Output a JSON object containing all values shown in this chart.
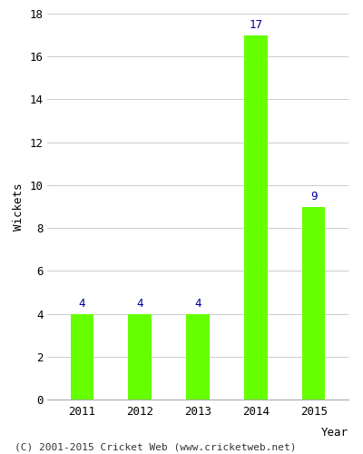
{
  "years": [
    "2011",
    "2012",
    "2013",
    "2014",
    "2015"
  ],
  "values": [
    4,
    4,
    4,
    17,
    9
  ],
  "bar_color": "#66ff00",
  "bar_edgecolor": "#66ff00",
  "label_color": "#000099",
  "xlabel": "Year",
  "ylabel": "Wickets",
  "ylim": [
    0,
    18
  ],
  "yticks": [
    0,
    2,
    4,
    6,
    8,
    10,
    12,
    14,
    16,
    18
  ],
  "grid_color": "#cccccc",
  "background_color": "#ffffff",
  "footer_text": "(C) 2001-2015 Cricket Web (www.cricketweb.net)",
  "label_fontsize": 9,
  "axis_label_fontsize": 9,
  "tick_fontsize": 9,
  "footer_fontsize": 8,
  "bar_width": 0.4
}
